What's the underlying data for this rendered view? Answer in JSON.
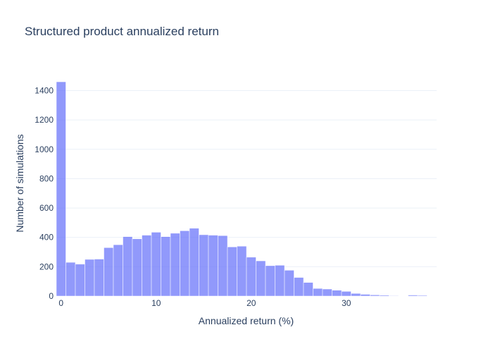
{
  "chart_data": {
    "type": "bar",
    "title": "Structured product annualized return",
    "xlabel": "Annualized return (%)",
    "ylabel": "Number of simulations",
    "bin_width": 1,
    "bin_start": -0.5,
    "values": [
      1460,
      230,
      218,
      250,
      252,
      330,
      350,
      405,
      390,
      415,
      435,
      405,
      428,
      445,
      462,
      418,
      415,
      412,
      335,
      340,
      265,
      240,
      207,
      210,
      176,
      127,
      93,
      52,
      48,
      40,
      32,
      18,
      12,
      8,
      6,
      3,
      2,
      7,
      5,
      2
    ],
    "xlim": [
      -0.5,
      39.5
    ],
    "ylim": [
      0,
      1537
    ],
    "x_ticks": [
      0,
      10,
      20,
      30
    ],
    "y_ticks": [
      0,
      200,
      400,
      600,
      800,
      1000,
      1200,
      1400
    ],
    "grid": true,
    "bar_color": "#636efa",
    "bar_opacity": 0.7,
    "grid_color": "#ebf0f8",
    "text_color": "#2a3f5f"
  }
}
